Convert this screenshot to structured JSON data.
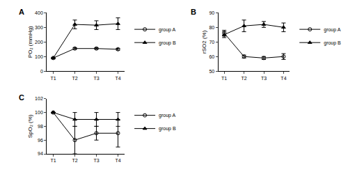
{
  "chart_data": [
    {
      "type": "line",
      "title": "A",
      "categories": [
        "T1",
        "T2",
        "T3",
        "T4"
      ],
      "y_label": "PO₂ (mmHg)",
      "ylim": [
        0,
        400
      ],
      "yticks": [
        0,
        100,
        200,
        300,
        400
      ],
      "grid": false,
      "legend": "right",
      "series": [
        {
          "name": "group A",
          "color": "#000000",
          "marker": "circle-open",
          "values": [
            90,
            155,
            155,
            150
          ],
          "error": [
            3,
            5,
            5,
            6
          ]
        },
        {
          "name": "group B",
          "color": "#000000",
          "marker": "triangle-up",
          "values": [
            90,
            320,
            315,
            325
          ],
          "error": [
            3,
            30,
            30,
            40
          ]
        }
      ]
    },
    {
      "type": "line",
      "title": "B",
      "categories": [
        "T1",
        "T2",
        "T3",
        "T4"
      ],
      "y_label": "rSO2 (%)",
      "ylim": [
        50,
        90
      ],
      "yticks": [
        50,
        60,
        70,
        80,
        90
      ],
      "grid": false,
      "legend": "right",
      "series": [
        {
          "name": "group A",
          "color": "#000000",
          "marker": "circle-open",
          "values": [
            76,
            60,
            59,
            60
          ],
          "error": [
            2,
            1,
            1,
            2
          ]
        },
        {
          "name": "group B",
          "color": "#000000",
          "marker": "triangle-up",
          "values": [
            75,
            81,
            82,
            80
          ],
          "error": [
            2,
            4,
            2,
            3
          ]
        }
      ]
    },
    {
      "type": "line",
      "title": "C",
      "categories": [
        "T1",
        "T2",
        "T3",
        "T4"
      ],
      "y_label": "SpO₂ (%)",
      "ylim": [
        94,
        102
      ],
      "yticks": [
        94,
        96,
        98,
        100,
        102
      ],
      "grid": false,
      "legend": "right",
      "series": [
        {
          "name": "group A",
          "color": "#000000",
          "marker": "circle-open",
          "values": [
            100,
            96,
            97,
            97
          ],
          "error": [
            0,
            2,
            1,
            2
          ]
        },
        {
          "name": "group B",
          "color": "#000000",
          "marker": "triangle-up",
          "values": [
            100,
            99,
            99,
            99
          ],
          "error": [
            0,
            1,
            1,
            1
          ]
        }
      ]
    }
  ]
}
